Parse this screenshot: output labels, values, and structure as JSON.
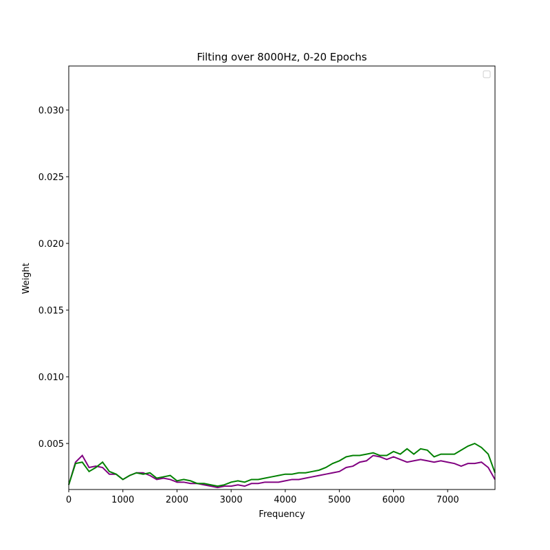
{
  "chart_data": {
    "type": "line",
    "title": "Filting over 8000Hz, 0-20 Epochs",
    "x_label": "Frequency",
    "y_label": "Weight",
    "x": [
      0,
      125,
      250,
      375,
      500,
      625,
      750,
      875,
      1000,
      1125,
      1250,
      1375,
      1500,
      1625,
      1750,
      1875,
      2000,
      2125,
      2250,
      2375,
      2500,
      2625,
      2750,
      2875,
      3000,
      3125,
      3250,
      3375,
      3500,
      3625,
      3750,
      3875,
      4000,
      4125,
      4250,
      4375,
      4500,
      4625,
      4750,
      4875,
      5000,
      5125,
      5250,
      5375,
      5500,
      5625,
      5750,
      5875,
      6000,
      6125,
      6250,
      6375,
      6500,
      6625,
      6750,
      6875,
      7000,
      7125,
      7250,
      7375,
      7500,
      7625,
      7750,
      7875
    ],
    "series": [
      {
        "color": "purple",
        "values": [
          0.0019,
          0.0036,
          0.0041,
          0.0032,
          0.0033,
          0.0032,
          0.0027,
          0.0027,
          0.0023,
          0.0026,
          0.0028,
          0.0028,
          0.0026,
          0.0023,
          0.0024,
          0.0023,
          0.0021,
          0.0021,
          0.002,
          0.002,
          0.0019,
          0.0018,
          0.0017,
          0.0018,
          0.0018,
          0.0019,
          0.0018,
          0.002,
          0.002,
          0.0021,
          0.0021,
          0.0021,
          0.0022,
          0.0023,
          0.0023,
          0.0024,
          0.0025,
          0.0026,
          0.0027,
          0.0028,
          0.0029,
          0.0032,
          0.0033,
          0.0036,
          0.0037,
          0.0041,
          0.004,
          0.0038,
          0.004,
          0.0038,
          0.0036,
          0.0037,
          0.0038,
          0.0037,
          0.0036,
          0.0037,
          0.0036,
          0.0035,
          0.0033,
          0.0035,
          0.0035,
          0.0036,
          0.0032,
          0.0023
        ]
      },
      {
        "color": "green",
        "values": [
          0.0019,
          0.0035,
          0.0036,
          0.0029,
          0.0032,
          0.0036,
          0.0029,
          0.0027,
          0.0023,
          0.0026,
          0.0028,
          0.0027,
          0.0028,
          0.0024,
          0.0025,
          0.0026,
          0.0022,
          0.0023,
          0.0022,
          0.002,
          0.002,
          0.0019,
          0.0018,
          0.0019,
          0.0021,
          0.0022,
          0.0021,
          0.0023,
          0.0023,
          0.0024,
          0.0025,
          0.0026,
          0.0027,
          0.0027,
          0.0028,
          0.0028,
          0.0029,
          0.003,
          0.0032,
          0.0035,
          0.0037,
          0.004,
          0.0041,
          0.0041,
          0.0042,
          0.0043,
          0.0041,
          0.0041,
          0.0044,
          0.0042,
          0.0046,
          0.0042,
          0.0046,
          0.0045,
          0.004,
          0.0042,
          0.0042,
          0.0042,
          0.0045,
          0.0048,
          0.005,
          0.0047,
          0.0042,
          0.0028
        ]
      }
    ],
    "xlim": [
      0,
      7875
    ],
    "ylim": [
      0.00155,
      0.0333
    ],
    "xticks": [
      0,
      1000,
      2000,
      3000,
      4000,
      5000,
      6000,
      7000
    ],
    "yticks": [
      0.005,
      {
        "value": 0.01,
        "label": "0.010"
      },
      0.015,
      {
        "value": 0.02,
        "label": "0.020"
      },
      0.025,
      {
        "value": 0.03,
        "label": "0.030"
      }
    ]
  }
}
